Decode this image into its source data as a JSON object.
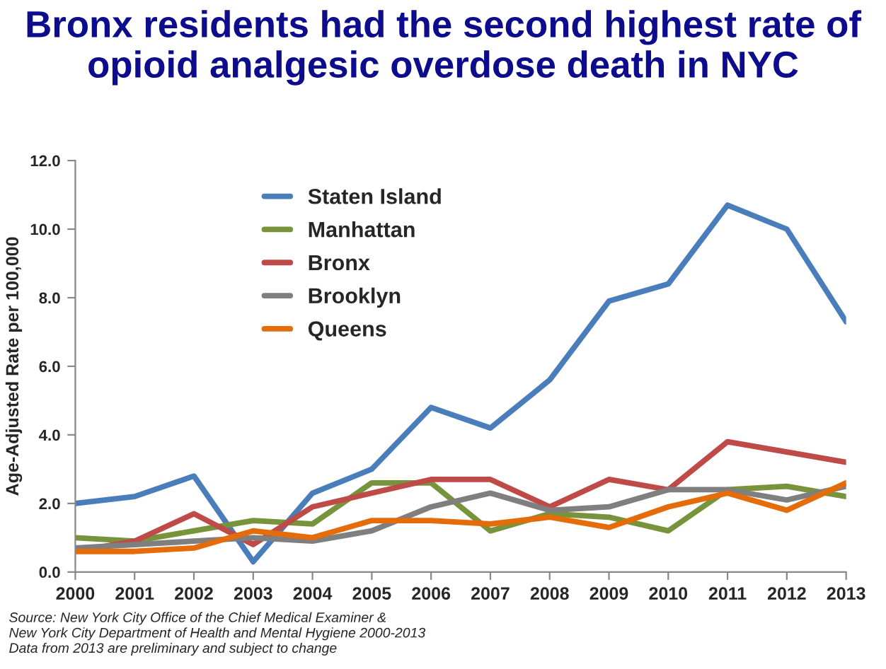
{
  "chart_data": {
    "type": "line",
    "title": "Bronx residents had the second highest rate of opioid analgesic overdose death in NYC",
    "ylabel": "Age-Adjusted Rate per 100,000",
    "categories": [
      "2000",
      "2001",
      "2002",
      "2003",
      "2004",
      "2005",
      "2006",
      "2007",
      "2008",
      "2009",
      "2010",
      "2011",
      "2012",
      "2013"
    ],
    "series": [
      {
        "name": "Staten Island",
        "color": "#4a7ebb",
        "values": [
          2.0,
          2.2,
          2.8,
          0.3,
          2.3,
          3.0,
          4.8,
          4.2,
          5.6,
          7.9,
          8.4,
          10.7,
          10.0,
          7.3
        ]
      },
      {
        "name": "Manhattan",
        "color": "#77933c",
        "values": [
          1.0,
          0.9,
          1.2,
          1.5,
          1.4,
          2.6,
          2.6,
          1.2,
          1.7,
          1.6,
          1.2,
          2.4,
          2.5,
          2.2
        ]
      },
      {
        "name": "Bronx",
        "color": "#be4b48",
        "values": [
          0.6,
          0.9,
          1.7,
          0.8,
          1.9,
          2.3,
          2.7,
          2.7,
          1.9,
          2.7,
          2.4,
          3.8,
          3.5,
          3.2
        ]
      },
      {
        "name": "Brooklyn",
        "color": "#7f7f7f",
        "values": [
          0.7,
          0.8,
          0.9,
          1.0,
          0.9,
          1.2,
          1.9,
          2.3,
          1.8,
          1.9,
          2.4,
          2.4,
          2.1,
          2.5
        ]
      },
      {
        "name": "Queens",
        "color": "#e46c0a",
        "values": [
          0.6,
          0.6,
          0.7,
          1.2,
          1.0,
          1.5,
          1.5,
          1.4,
          1.6,
          1.3,
          1.9,
          2.3,
          1.8,
          2.6
        ]
      }
    ],
    "ylim": [
      0,
      12
    ],
    "yticks": [
      {
        "value": 0,
        "label": "0.0"
      },
      {
        "value": 2,
        "label": "2.0"
      },
      {
        "value": 4,
        "label": "4.0"
      },
      {
        "value": 6,
        "label": "6.0"
      },
      {
        "value": 8,
        "label": "8.0"
      },
      {
        "value": 10,
        "label": "10.0"
      },
      {
        "value": 12,
        "label": "12.0"
      }
    ],
    "grid": false,
    "legend": "top left",
    "annotations": [
      "Source: New York City Office of the Chief Medical Examiner &\nNew York City Department of Health and Mental Hygiene 2000-2013\nData from 2013 are preliminary and subject to change"
    ]
  }
}
